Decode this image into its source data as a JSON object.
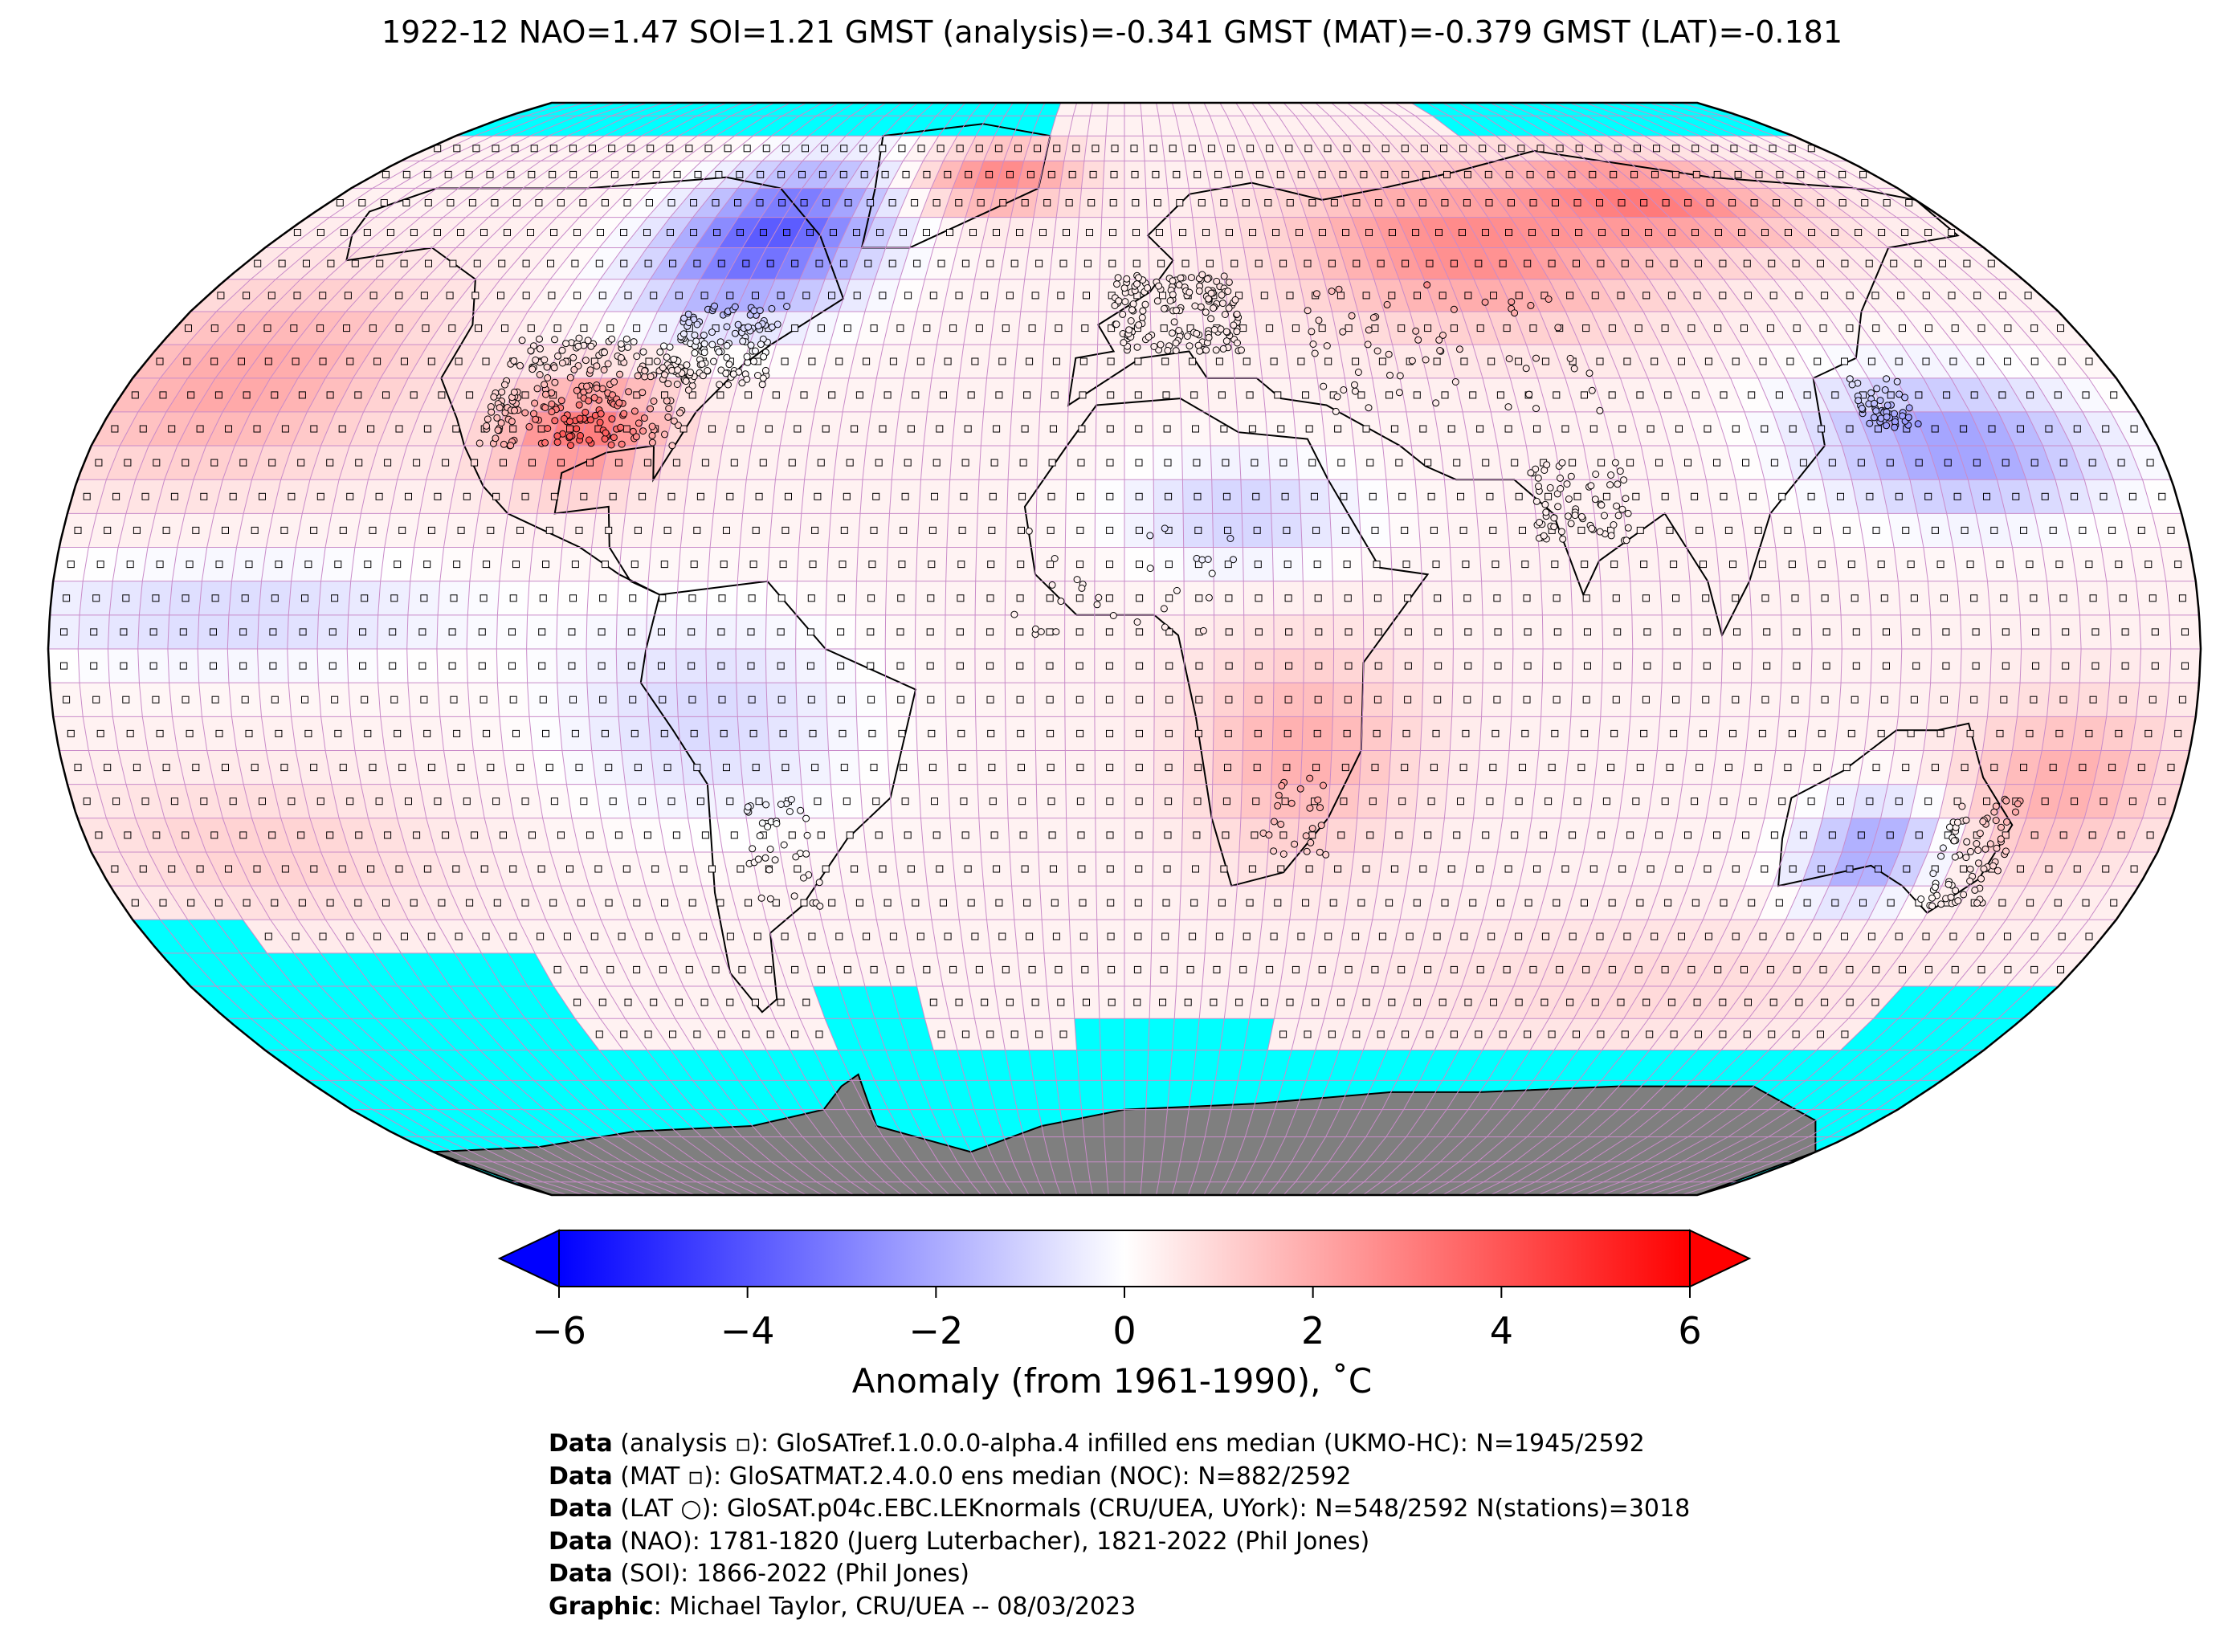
{
  "title": "1922-12 NAO=1.47 SOI=1.21 GMST (analysis)=-0.341 GMST (MAT)=-0.379 GMST (LAT)=-0.181",
  "map": {
    "projection": "Robinson",
    "land_color": "#7f7f7f",
    "missing_color": "#00ffff",
    "grid_color": "#c98bc9",
    "coast_color": "#000000"
  },
  "colorbar": {
    "cmap": "bwr",
    "vmin": -6,
    "vmax": 6,
    "extend": "both",
    "ticks": [
      "−6",
      "−4",
      "−2",
      "0",
      "2",
      "4",
      "6"
    ],
    "tick_values": [
      -6,
      -4,
      -2,
      0,
      2,
      4,
      6
    ],
    "label": "Anomaly (from 1961-1990), ˚C"
  },
  "credits": [
    {
      "bold": "Data",
      "rest": " (analysis ▫): GloSATref.1.0.0.0-alpha.4 infilled ens median (UKMO-HC): N=1945/2592"
    },
    {
      "bold": "Data",
      "rest": " (MAT ▫): GloSATMAT.2.4.0.0 ens median (NOC): N=882/2592"
    },
    {
      "bold": "Data",
      "rest": " (LAT ○): GloSAT.p04c.EBC.LEKnormals (CRU/UEA, UYork): N=548/2592 N(stations)=3018"
    },
    {
      "bold": "Data",
      "rest": " (NAO): 1781-1820 (Juerg Luterbacher), 1821-2022 (Phil Jones)"
    },
    {
      "bold": "Data",
      "rest": " (SOI): 1866-2022 (Phil Jones)"
    },
    {
      "bold": "Graphic",
      "rest": ": Michael Taylor, CRU/UEA -- 08/03/2023"
    }
  ]
}
